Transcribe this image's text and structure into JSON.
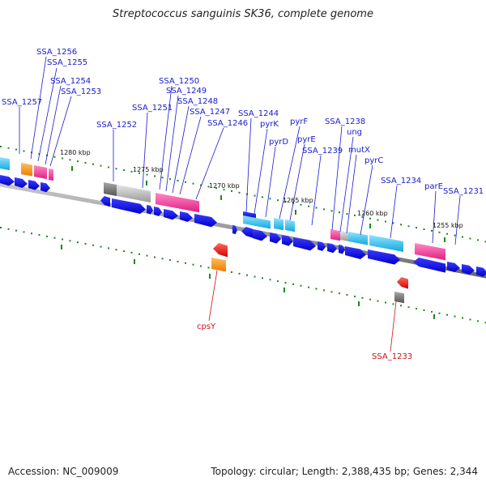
{
  "title": "Streptococcus sanguinis SK36, complete genome",
  "footer": {
    "accession": "Accession: NC_009009",
    "summary": "Topology: circular; Length: 2,388,435 bp; Genes: 2,344"
  },
  "colors": {
    "cds": "#0a0adc",
    "label_blue": "#1a1acc",
    "label_red": "#cc1111",
    "cyan": "#22b8e6",
    "pink": "#e8288a",
    "orange": "#f08c10",
    "gray": "#888888",
    "red": "#e01010",
    "tick": "#1a8a1a",
    "backbone": "#777777"
  },
  "kbp_labels": [
    "1280 kbp",
    "1275 kbp",
    "1270 kbp",
    "1265 kbp",
    "1260 kbp",
    "1255 kbp"
  ],
  "gene_labels_top": [
    "SSA_1256",
    "SSA_1255",
    "SSA_1254",
    "SSA_1253",
    "SSA_1257",
    "SSA_1250",
    "SSA_1249",
    "SSA_1248",
    "SSA_1251",
    "SSA_1247",
    "SSA_1252",
    "SSA_1246",
    "SSA_1244",
    "pyrK",
    "pyrD",
    "pyrF",
    "pyrE",
    "SSA_1238",
    "ung",
    "SSA_1239",
    "mutX",
    "pyrC",
    "SSA_1234",
    "parE",
    "SSA_1231"
  ],
  "gene_labels_bottom": [
    "cpsY",
    "SSA_1233"
  ]
}
